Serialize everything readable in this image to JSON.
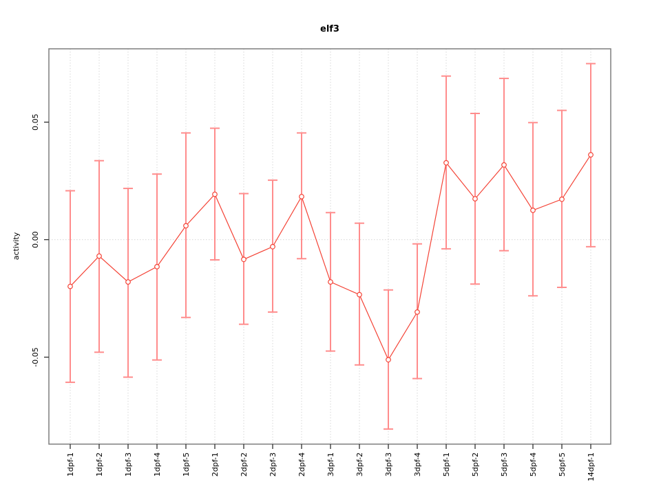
{
  "title": "elf3",
  "y_axis": {
    "label": "activity",
    "tick_values": [
      -0.05,
      0,
      0.05
    ],
    "tick_labels": [
      "-0.05",
      "0.00",
      "0.05"
    ]
  },
  "chart_data": {
    "type": "line",
    "title": "elf3",
    "xlabel": "",
    "ylabel": "activity",
    "categories": [
      "1dpf-1",
      "1dpf-2",
      "1dpf-3",
      "1dpf-4",
      "1dpf-5",
      "2dpf-1",
      "2dpf-2",
      "2dpf-3",
      "2dpf-4",
      "3dpf-1",
      "3dpf-2",
      "3dpf-3",
      "3dpf-4",
      "5dpf-1",
      "5dpf-2",
      "5dpf-3",
      "5dpf-4",
      "5dpf-5",
      "14dpf-1"
    ],
    "series": [
      {
        "name": "activity",
        "values": [
          -0.0199,
          -0.007,
          -0.018,
          -0.0115,
          0.0059,
          0.0193,
          -0.0084,
          -0.003,
          0.0183,
          -0.018,
          -0.0234,
          -0.0511,
          -0.0308,
          0.0327,
          0.0174,
          0.0318,
          0.0125,
          0.0172,
          0.0361
        ],
        "error_upper": [
          0.0208,
          0.0336,
          0.0218,
          0.0279,
          0.0454,
          0.0474,
          0.0196,
          0.0253,
          0.0454,
          0.0115,
          0.007,
          -0.0214,
          -0.0018,
          0.0696,
          0.0537,
          0.0686,
          0.0498,
          0.055,
          0.0749
        ],
        "error_lower": [
          -0.0607,
          -0.0479,
          -0.0585,
          -0.0512,
          -0.0331,
          -0.0086,
          -0.036,
          -0.0308,
          -0.0081,
          -0.0474,
          -0.0533,
          -0.0806,
          -0.0591,
          -0.0039,
          -0.0189,
          -0.0047,
          -0.0239,
          -0.0203,
          -0.003
        ]
      }
    ],
    "ylim": [
      -0.087,
      0.0812
    ],
    "yticks": [
      -0.05,
      0,
      0.05
    ],
    "grid": "vertical dotted line at each category; horizontal dotted line at y=0",
    "legend": "none",
    "marker": "open-circle",
    "error_bar_caps": true
  },
  "colors": {
    "error_bar": "#ff8c8c",
    "series_line": "#f44336",
    "point_stroke": "#f44336",
    "grid_dotted": "#d6d6d6",
    "plot_border": "#7d7d7d",
    "tick_mark": "#2e2e2e",
    "text": "#000000",
    "background": "#ffffff"
  }
}
